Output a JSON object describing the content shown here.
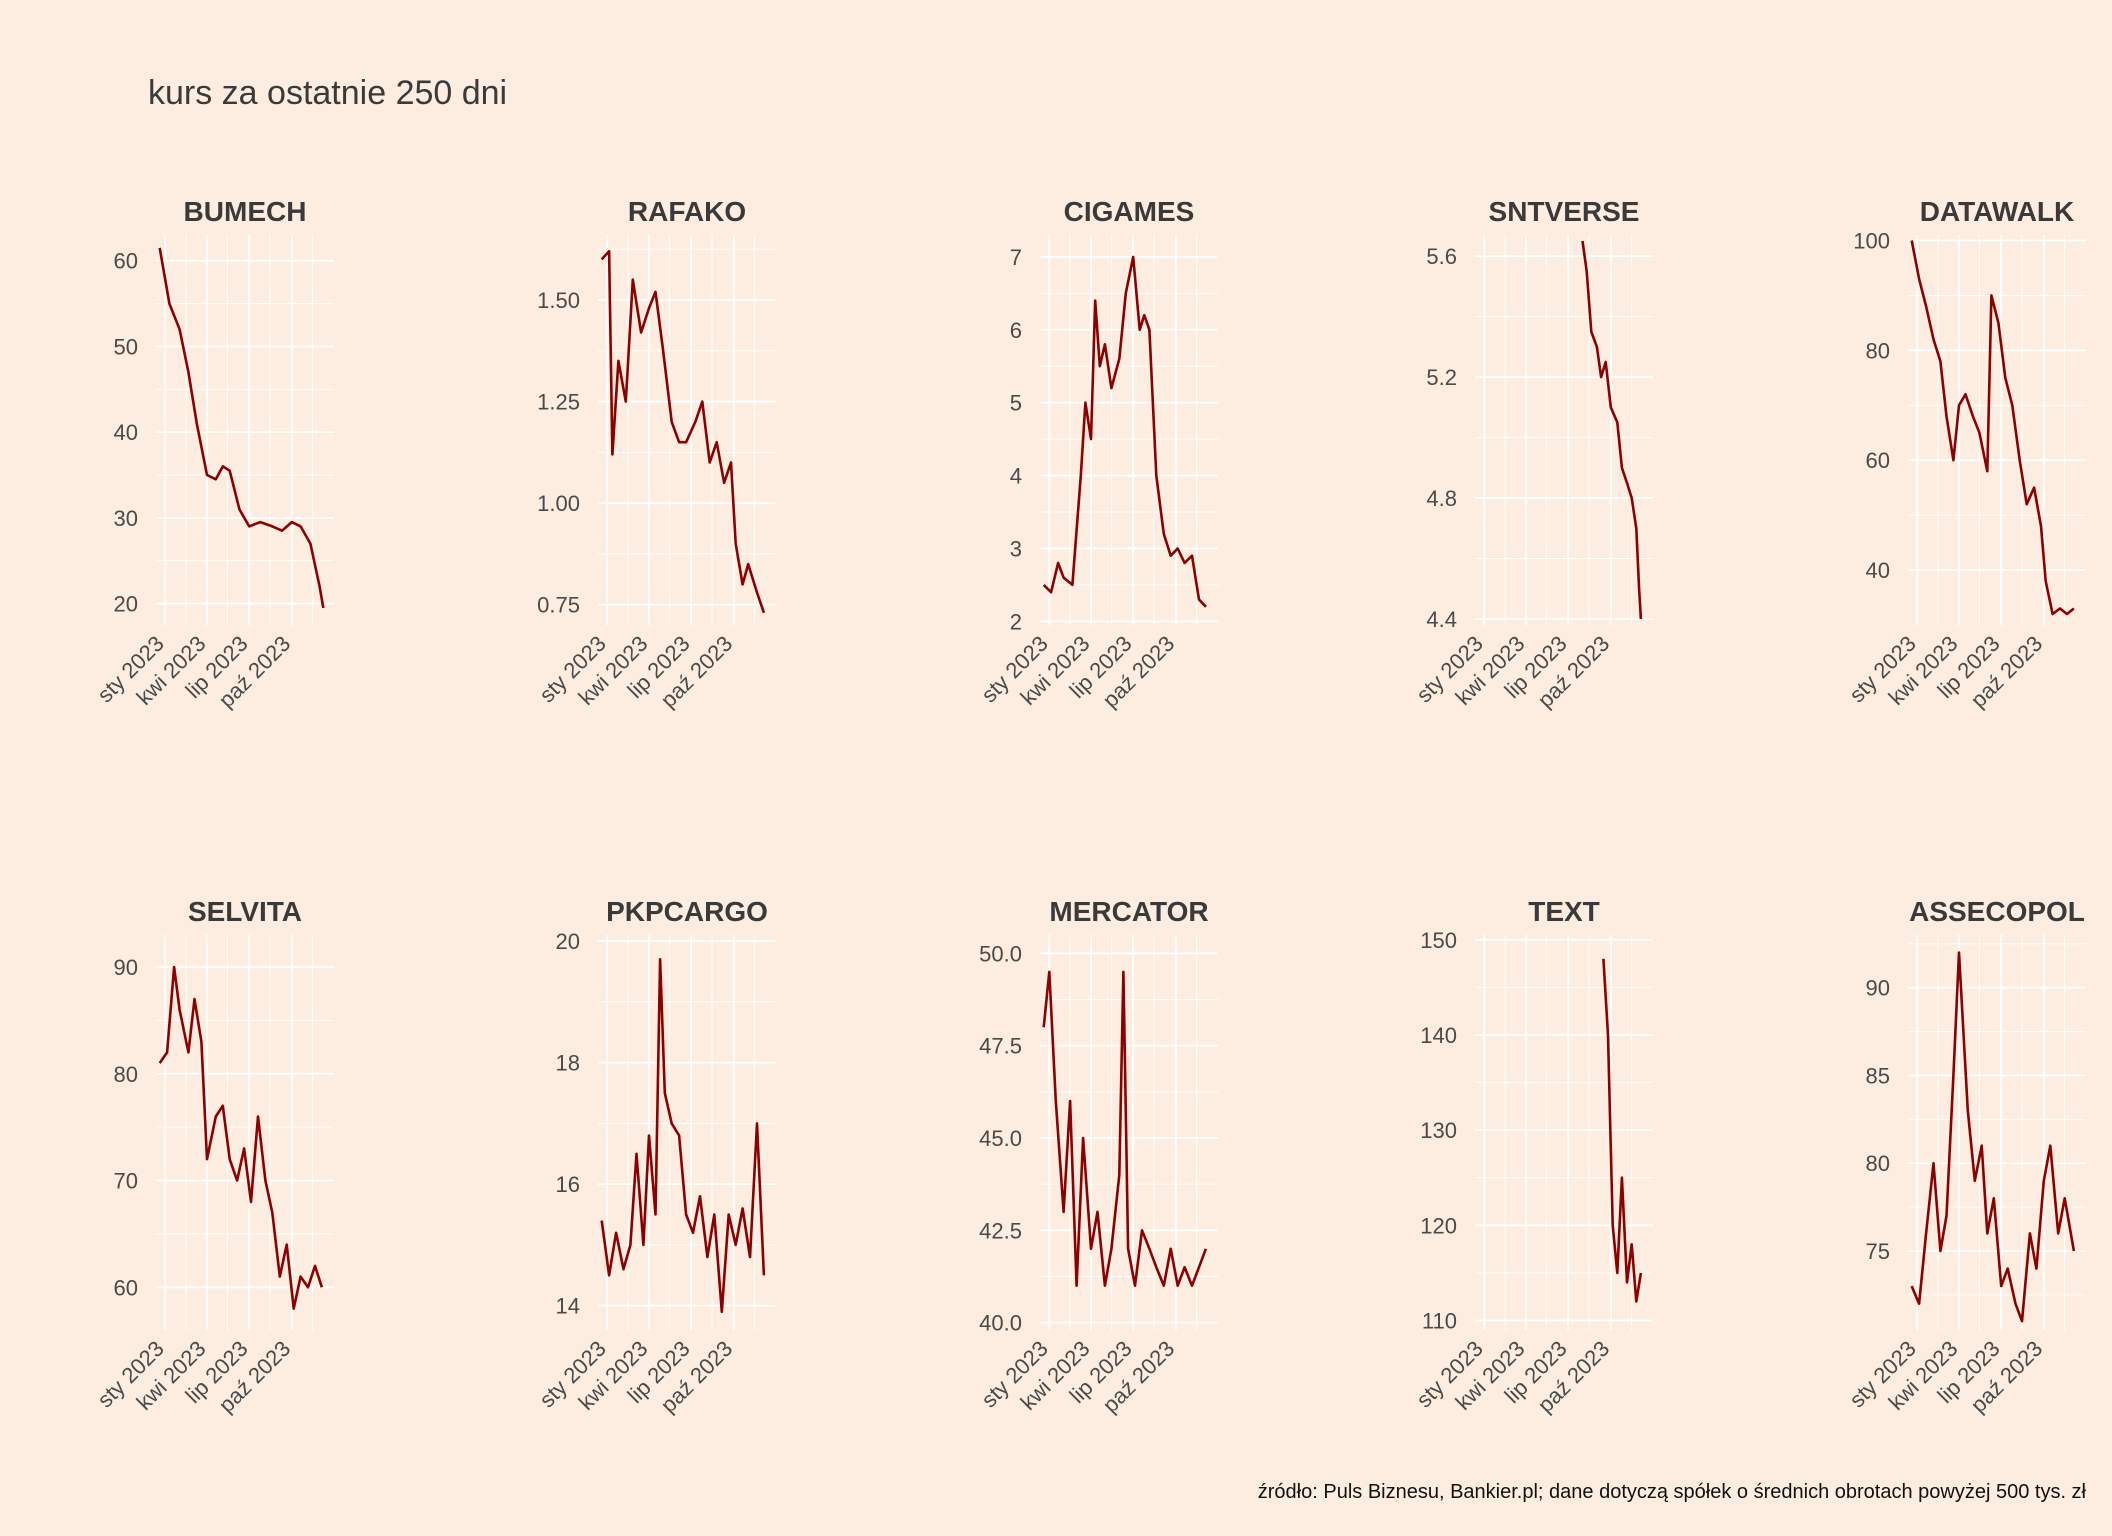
{
  "title": "kurs za ostatnie 250 dni",
  "source": "źródło: Puls Biznesu, Bankier.pl; dane dotyczą spółek o średnich obrotach powyżej 500 tys. zł",
  "line_color": "#8b0000",
  "background_color": "#fcede0",
  "chart_data": [
    {
      "type": "line",
      "title": "BUMECH",
      "x_ticks": [
        "sty 2023",
        "kwi 2023",
        "lip 2023",
        "paź 2023"
      ],
      "x_range": [
        "2022-12-12",
        "2023-12-31"
      ],
      "ylim": [
        17.5,
        63
      ],
      "y_ticks": [
        20,
        30,
        40,
        50,
        60
      ],
      "x": [
        "2022-12-20",
        "2023-01-10",
        "2023-02-01",
        "2023-02-20",
        "2023-03-10",
        "2023-04-01",
        "2023-04-20",
        "2023-05-05",
        "2023-05-20",
        "2023-06-10",
        "2023-07-01",
        "2023-07-25",
        "2023-08-20",
        "2023-09-10",
        "2023-10-01",
        "2023-10-20",
        "2023-11-10",
        "2023-11-30",
        "2023-12-08"
      ],
      "y": [
        61.5,
        55,
        52,
        47,
        41,
        35,
        34.5,
        36,
        35.5,
        31,
        29,
        29.5,
        29,
        28.5,
        29.5,
        29,
        27,
        22,
        19.5
      ]
    },
    {
      "type": "line",
      "title": "RAFAKO",
      "x_ticks": [
        "sty 2023",
        "kwi 2023",
        "lip 2023",
        "paź 2023"
      ],
      "x_range": [
        "2022-12-12",
        "2023-12-31"
      ],
      "ylim": [
        0.7,
        1.66
      ],
      "y_ticks": [
        "0.75",
        "1.00",
        "1.25",
        "1.50"
      ],
      "x": [
        "2022-12-20",
        "2023-01-05",
        "2023-01-12",
        "2023-01-25",
        "2023-02-10",
        "2023-02-25",
        "2023-03-15",
        "2023-04-01",
        "2023-04-15",
        "2023-05-01",
        "2023-05-20",
        "2023-06-05",
        "2023-06-20",
        "2023-07-10",
        "2023-07-25",
        "2023-08-10",
        "2023-08-25",
        "2023-09-10",
        "2023-09-25",
        "2023-10-05",
        "2023-10-20",
        "2023-11-01",
        "2023-11-20",
        "2023-12-05"
      ],
      "y": [
        1.6,
        1.62,
        1.12,
        1.35,
        1.25,
        1.55,
        1.42,
        1.48,
        1.52,
        1.38,
        1.2,
        1.15,
        1.15,
        1.2,
        1.25,
        1.1,
        1.15,
        1.05,
        1.1,
        0.9,
        0.8,
        0.85,
        0.78,
        0.73
      ]
    },
    {
      "type": "line",
      "title": "CIGAMES",
      "x_ticks": [
        "sty 2023",
        "kwi 2023",
        "lip 2023",
        "paź 2023"
      ],
      "x_range": [
        "2022-12-12",
        "2023-12-31"
      ],
      "ylim": [
        1.95,
        7.3
      ],
      "y_ticks": [
        2,
        3,
        4,
        5,
        6,
        7
      ],
      "x": [
        "2022-12-20",
        "2023-01-05",
        "2023-01-20",
        "2023-02-01",
        "2023-02-20",
        "2023-03-10",
        "2023-03-20",
        "2023-04-01",
        "2023-04-10",
        "2023-04-20",
        "2023-05-01",
        "2023-05-15",
        "2023-06-01",
        "2023-06-15",
        "2023-07-01",
        "2023-07-15",
        "2023-07-25",
        "2023-08-05",
        "2023-08-20",
        "2023-09-05",
        "2023-09-20",
        "2023-10-05",
        "2023-10-20",
        "2023-11-05",
        "2023-11-20",
        "2023-12-05"
      ],
      "y": [
        2.5,
        2.4,
        2.8,
        2.6,
        2.5,
        4.0,
        5.0,
        4.5,
        6.4,
        5.5,
        5.8,
        5.2,
        5.6,
        6.5,
        7.0,
        6.0,
        6.2,
        6.0,
        4.0,
        3.2,
        2.9,
        3.0,
        2.8,
        2.9,
        2.3,
        2.2
      ]
    },
    {
      "type": "line",
      "title": "SNTVERSE",
      "x_ticks": [
        "sty 2023",
        "kwi 2023",
        "lip 2023",
        "paź 2023"
      ],
      "x_range": [
        "2022-12-12",
        "2023-12-31"
      ],
      "ylim": [
        4.38,
        5.67
      ],
      "y_ticks": [
        "4.4",
        "4.8",
        "5.2",
        "5.6"
      ],
      "x": [
        "2023-08-01",
        "2023-08-10",
        "2023-08-20",
        "2023-09-01",
        "2023-09-10",
        "2023-09-20",
        "2023-10-01",
        "2023-10-15",
        "2023-10-25",
        "2023-11-05",
        "2023-11-15",
        "2023-11-25",
        "2023-12-01",
        "2023-12-05"
      ],
      "y": [
        5.65,
        5.55,
        5.35,
        5.3,
        5.2,
        5.25,
        5.1,
        5.05,
        4.9,
        4.85,
        4.8,
        4.7,
        4.5,
        4.4
      ]
    },
    {
      "type": "line",
      "title": "DATAWALK",
      "x_ticks": [
        "sty 2023",
        "kwi 2023",
        "lip 2023",
        "paź 2023"
      ],
      "x_range": [
        "2022-12-12",
        "2023-12-31"
      ],
      "ylim": [
        30,
        101
      ],
      "y_ticks": [
        40,
        60,
        80,
        100
      ],
      "x": [
        "2022-12-20",
        "2023-01-05",
        "2023-01-20",
        "2023-02-05",
        "2023-02-20",
        "2023-03-05",
        "2023-03-20",
        "2023-04-01",
        "2023-04-15",
        "2023-05-01",
        "2023-05-15",
        "2023-06-01",
        "2023-06-10",
        "2023-06-25",
        "2023-07-10",
        "2023-07-25",
        "2023-08-10",
        "2023-08-25",
        "2023-09-10",
        "2023-09-25",
        "2023-10-05",
        "2023-10-20",
        "2023-11-05",
        "2023-11-20",
        "2023-12-05"
      ],
      "y": [
        100,
        93,
        88,
        82,
        78,
        68,
        60,
        70,
        72,
        68,
        65,
        58,
        90,
        85,
        75,
        70,
        60,
        52,
        55,
        48,
        38,
        32,
        33,
        32,
        33
      ]
    },
    {
      "type": "line",
      "title": "SELVITA",
      "x_ticks": [
        "sty 2023",
        "kwi 2023",
        "lip 2023",
        "paź 2023"
      ],
      "x_range": [
        "2022-12-12",
        "2023-12-31"
      ],
      "ylim": [
        56,
        93
      ],
      "y_ticks": [
        60,
        70,
        80,
        90
      ],
      "x": [
        "2022-12-20",
        "2023-01-05",
        "2023-01-20",
        "2023-02-01",
        "2023-02-20",
        "2023-03-05",
        "2023-03-20",
        "2023-04-01",
        "2023-04-20",
        "2023-05-05",
        "2023-05-20",
        "2023-06-05",
        "2023-06-20",
        "2023-07-05",
        "2023-07-20",
        "2023-08-05",
        "2023-08-20",
        "2023-09-05",
        "2023-09-20",
        "2023-10-05",
        "2023-10-20",
        "2023-11-05",
        "2023-11-20",
        "2023-12-05"
      ],
      "y": [
        81,
        82,
        90,
        86,
        82,
        87,
        83,
        72,
        76,
        77,
        72,
        70,
        73,
        68,
        76,
        70,
        67,
        61,
        64,
        58,
        61,
        60,
        62,
        60
      ]
    },
    {
      "type": "line",
      "title": "PKPCARGO",
      "x_ticks": [
        "sty 2023",
        "kwi 2023",
        "lip 2023",
        "paź 2023"
      ],
      "x_range": [
        "2022-12-12",
        "2023-12-31"
      ],
      "ylim": [
        13.6,
        20.1
      ],
      "y_ticks": [
        14,
        16,
        18,
        20
      ],
      "x": [
        "2022-12-20",
        "2023-01-05",
        "2023-01-20",
        "2023-02-05",
        "2023-02-20",
        "2023-03-05",
        "2023-03-20",
        "2023-04-01",
        "2023-04-15",
        "2023-04-25",
        "2023-05-05",
        "2023-05-20",
        "2023-06-05",
        "2023-06-20",
        "2023-07-05",
        "2023-07-20",
        "2023-08-05",
        "2023-08-20",
        "2023-09-05",
        "2023-09-20",
        "2023-10-05",
        "2023-10-20",
        "2023-11-05",
        "2023-11-20",
        "2023-12-05"
      ],
      "y": [
        15.4,
        14.5,
        15.2,
        14.6,
        15.0,
        16.5,
        15.0,
        16.8,
        15.5,
        19.7,
        17.5,
        17.0,
        16.8,
        15.5,
        15.2,
        15.8,
        14.8,
        15.5,
        13.9,
        15.5,
        15.0,
        15.6,
        14.8,
        17.0,
        14.5
      ]
    },
    {
      "type": "line",
      "title": "MERCATOR",
      "x_ticks": [
        "sty 2023",
        "kwi 2023",
        "lip 2023",
        "paź 2023"
      ],
      "x_range": [
        "2022-12-12",
        "2023-12-31"
      ],
      "ylim": [
        39.8,
        50.5
      ],
      "y_ticks": [
        "40.0",
        "42.5",
        "45.0",
        "47.5",
        "50.0"
      ],
      "x": [
        "2022-12-20",
        "2023-01-01",
        "2023-01-15",
        "2023-02-01",
        "2023-02-15",
        "2023-03-01",
        "2023-03-15",
        "2023-04-01",
        "2023-04-15",
        "2023-05-01",
        "2023-05-15",
        "2023-06-01",
        "2023-06-10",
        "2023-06-20",
        "2023-07-05",
        "2023-07-20",
        "2023-08-05",
        "2023-08-20",
        "2023-09-05",
        "2023-09-20",
        "2023-10-05",
        "2023-10-20",
        "2023-11-05",
        "2023-11-20",
        "2023-12-05"
      ],
      "y": [
        48,
        49.5,
        46,
        43,
        46,
        41,
        45,
        42,
        43,
        41,
        42,
        44,
        49.5,
        42,
        41,
        42.5,
        42,
        41.5,
        41,
        42,
        41,
        41.5,
        41,
        41.5,
        42
      ]
    },
    {
      "type": "line",
      "title": "TEXT",
      "x_ticks": [
        "sty 2023",
        "kwi 2023",
        "lip 2023",
        "paź 2023"
      ],
      "x_range": [
        "2022-12-12",
        "2023-12-31"
      ],
      "ylim": [
        109,
        150.5
      ],
      "y_ticks": [
        110,
        120,
        130,
        140,
        150
      ],
      "x": [
        "2023-09-15",
        "2023-09-25",
        "2023-10-05",
        "2023-10-15",
        "2023-10-25",
        "2023-11-05",
        "2023-11-15",
        "2023-11-25",
        "2023-12-05"
      ],
      "y": [
        148,
        140,
        120,
        115,
        125,
        114,
        118,
        112,
        115
      ]
    },
    {
      "type": "line",
      "title": "ASSECOPOL",
      "x_ticks": [
        "sty 2023",
        "kwi 2023",
        "lip 2023",
        "paź 2023"
      ],
      "x_range": [
        "2022-12-12",
        "2023-12-31"
      ],
      "ylim": [
        70.5,
        93
      ],
      "y_ticks": [
        75,
        80,
        85,
        90
      ],
      "x": [
        "2022-12-20",
        "2023-01-05",
        "2023-01-20",
        "2023-02-05",
        "2023-02-20",
        "2023-03-05",
        "2023-03-20",
        "2023-04-01",
        "2023-04-20",
        "2023-05-05",
        "2023-05-20",
        "2023-06-01",
        "2023-06-15",
        "2023-07-01",
        "2023-07-15",
        "2023-08-01",
        "2023-08-15",
        "2023-09-01",
        "2023-09-15",
        "2023-10-01",
        "2023-10-15",
        "2023-11-01",
        "2023-11-15",
        "2023-12-05"
      ],
      "y": [
        73,
        72,
        76,
        80,
        75,
        77,
        85,
        92,
        83,
        79,
        81,
        76,
        78,
        73,
        74,
        72,
        71,
        76,
        74,
        79,
        81,
        76,
        78,
        75
      ]
    }
  ]
}
